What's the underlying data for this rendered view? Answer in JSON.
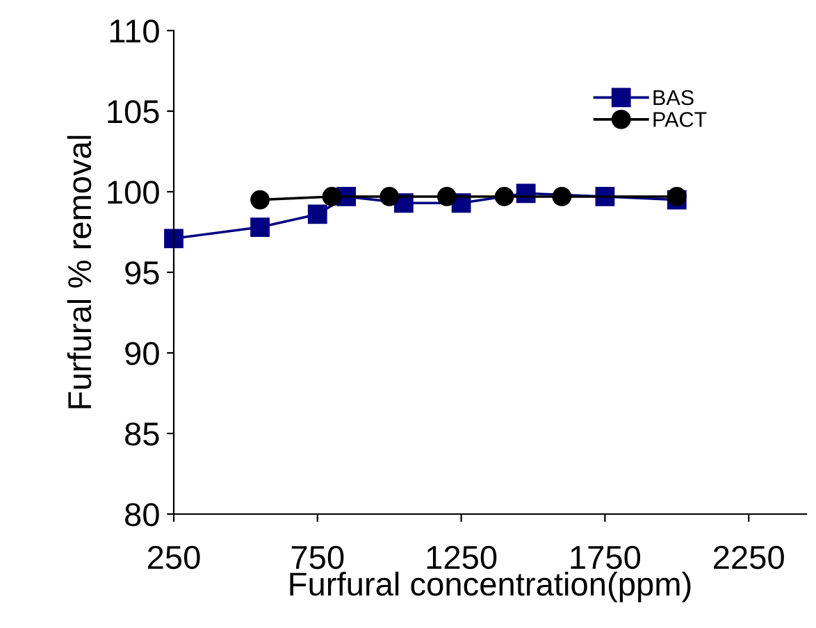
{
  "chart_data": {
    "type": "line",
    "xlabel": "Furfural concentration(ppm)",
    "ylabel": "Furfural % removal",
    "series": [
      {
        "name": "BAS",
        "color": "#000080",
        "marker": "square",
        "x": [
          250,
          550,
          750,
          850,
          1050,
          1250,
          1475,
          1750,
          2000
        ],
        "values": [
          97.1,
          97.8,
          98.6,
          99.7,
          99.3,
          99.3,
          99.9,
          99.7,
          99.5
        ]
      },
      {
        "name": "PACT",
        "color": "#000000",
        "marker": "circle",
        "x": [
          550,
          800,
          1000,
          1200,
          1400,
          1600,
          2000
        ],
        "values": [
          99.5,
          99.7,
          99.7,
          99.7,
          99.7,
          99.7,
          99.7
        ]
      }
    ],
    "xlim": [
      250,
      2450
    ],
    "xticks": [
      250,
      750,
      1250,
      1750,
      2250
    ],
    "ylim": [
      80,
      110
    ],
    "yticks": [
      80,
      85,
      90,
      95,
      100,
      105,
      110
    ],
    "grid": false,
    "legend": "top right",
    "line_style": "solid"
  }
}
